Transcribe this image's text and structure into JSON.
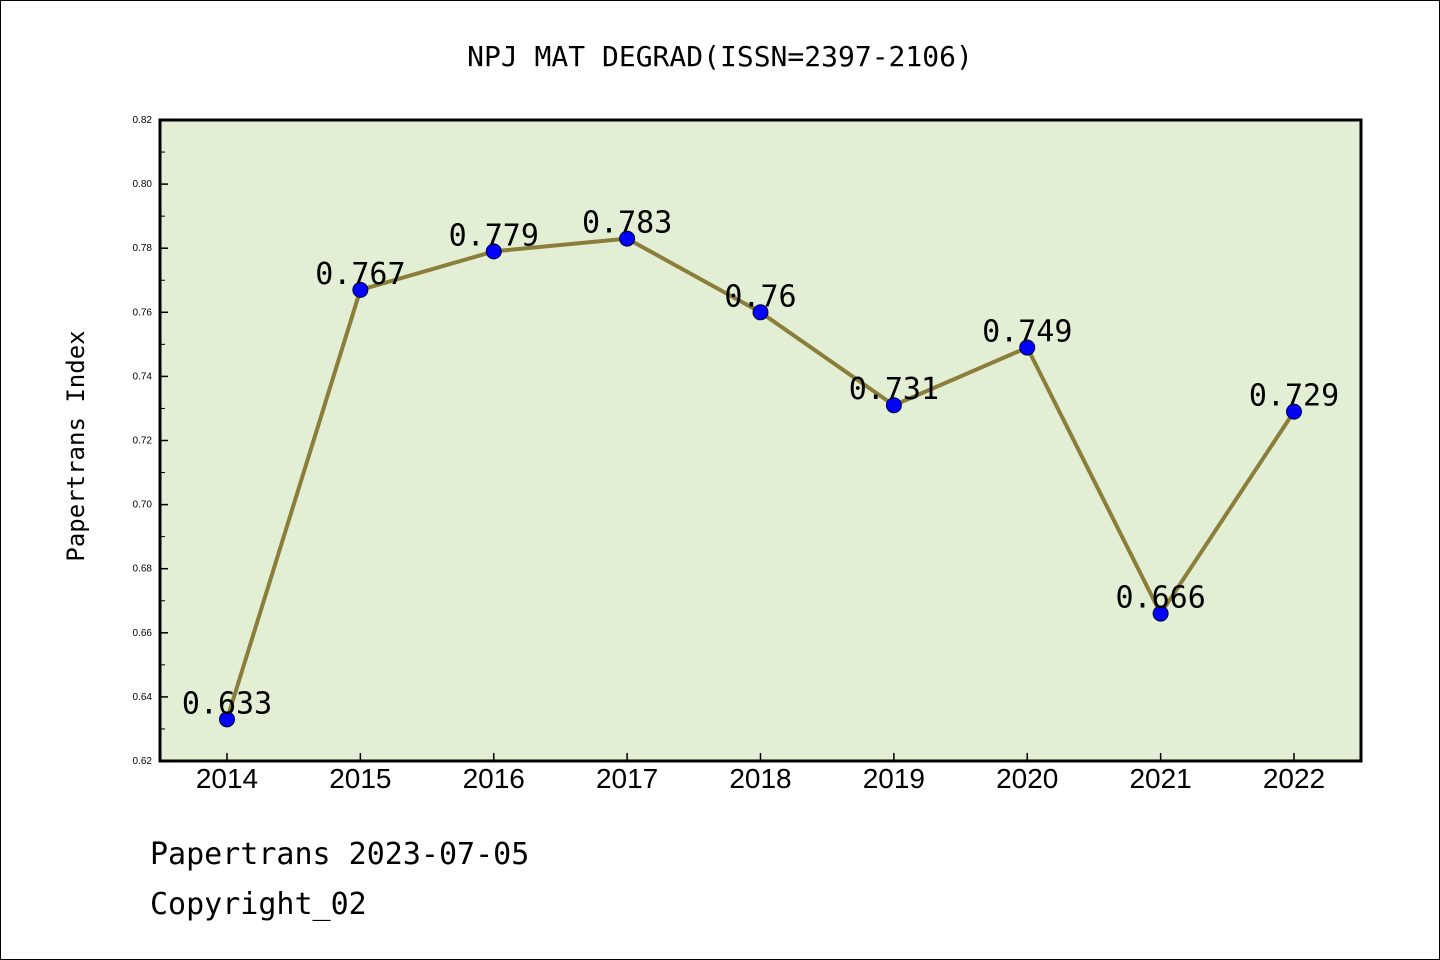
{
  "chart_data": {
    "type": "line",
    "title": "NPJ MAT DEGRAD(ISSN=2397-2106)",
    "xlabel": "",
    "ylabel": "Papertrans Index",
    "categories": [
      "2014",
      "2015",
      "2016",
      "2017",
      "2018",
      "2019",
      "2020",
      "2021",
      "2022"
    ],
    "values": [
      0.633,
      0.767,
      0.779,
      0.783,
      0.76,
      0.731,
      0.749,
      0.666,
      0.729
    ],
    "data_labels": [
      "0.633",
      "0.767",
      "0.779",
      "0.783",
      "0.76",
      "0.731",
      "0.749",
      "0.666",
      "0.729"
    ],
    "ylim": [
      0.62,
      0.82
    ],
    "yticks": [
      0.62,
      0.64,
      0.66,
      0.68,
      0.7,
      0.72,
      0.74,
      0.76,
      0.78,
      0.8,
      0.82
    ],
    "ytick_labels": [
      "0.62",
      "0.64",
      "0.66",
      "0.68",
      "0.70",
      "0.72",
      "0.74",
      "0.76",
      "0.78",
      "0.80",
      "0.82"
    ],
    "grid": false,
    "legend": "none",
    "colors": {
      "plot_background": "#e2efd4",
      "line": "#8b7d3a",
      "marker": "#0000ff",
      "text": "#000000"
    }
  },
  "footer": {
    "line1": "Papertrans 2023-07-05",
    "line2": "Copyright_02"
  }
}
